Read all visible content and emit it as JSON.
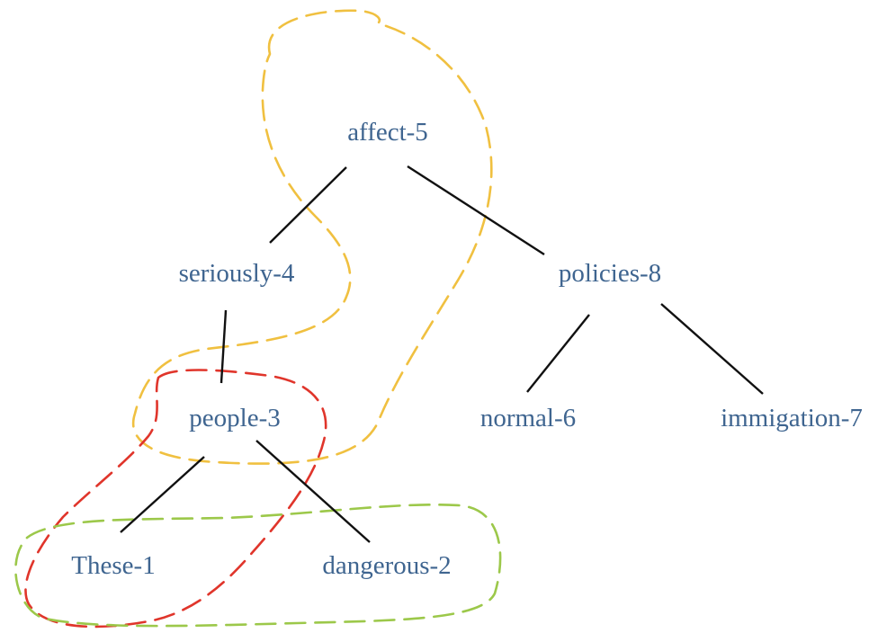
{
  "nodes": [
    {
      "id": "affect",
      "label": "affect-5"
    },
    {
      "id": "seriously",
      "label": "seriously-4"
    },
    {
      "id": "policies",
      "label": "policies-8"
    },
    {
      "id": "people",
      "label": "people-3"
    },
    {
      "id": "normal",
      "label": "normal-6"
    },
    {
      "id": "immigation",
      "label": "immigation-7"
    },
    {
      "id": "these",
      "label": "These-1"
    },
    {
      "id": "dangerous",
      "label": "dangerous-2"
    }
  ],
  "edges": [
    {
      "from": "affect",
      "to": "seriously"
    },
    {
      "from": "affect",
      "to": "policies"
    },
    {
      "from": "seriously",
      "to": "people"
    },
    {
      "from": "policies",
      "to": "normal"
    },
    {
      "from": "policies",
      "to": "immigation"
    },
    {
      "from": "people",
      "to": "these"
    },
    {
      "from": "people",
      "to": "dangerous"
    }
  ],
  "colors": {
    "node_text": "#3f6590",
    "edge": "#111111",
    "loop_yellow": "#f0c040",
    "loop_red": "#e0352b",
    "loop_green": "#9cc84a"
  }
}
